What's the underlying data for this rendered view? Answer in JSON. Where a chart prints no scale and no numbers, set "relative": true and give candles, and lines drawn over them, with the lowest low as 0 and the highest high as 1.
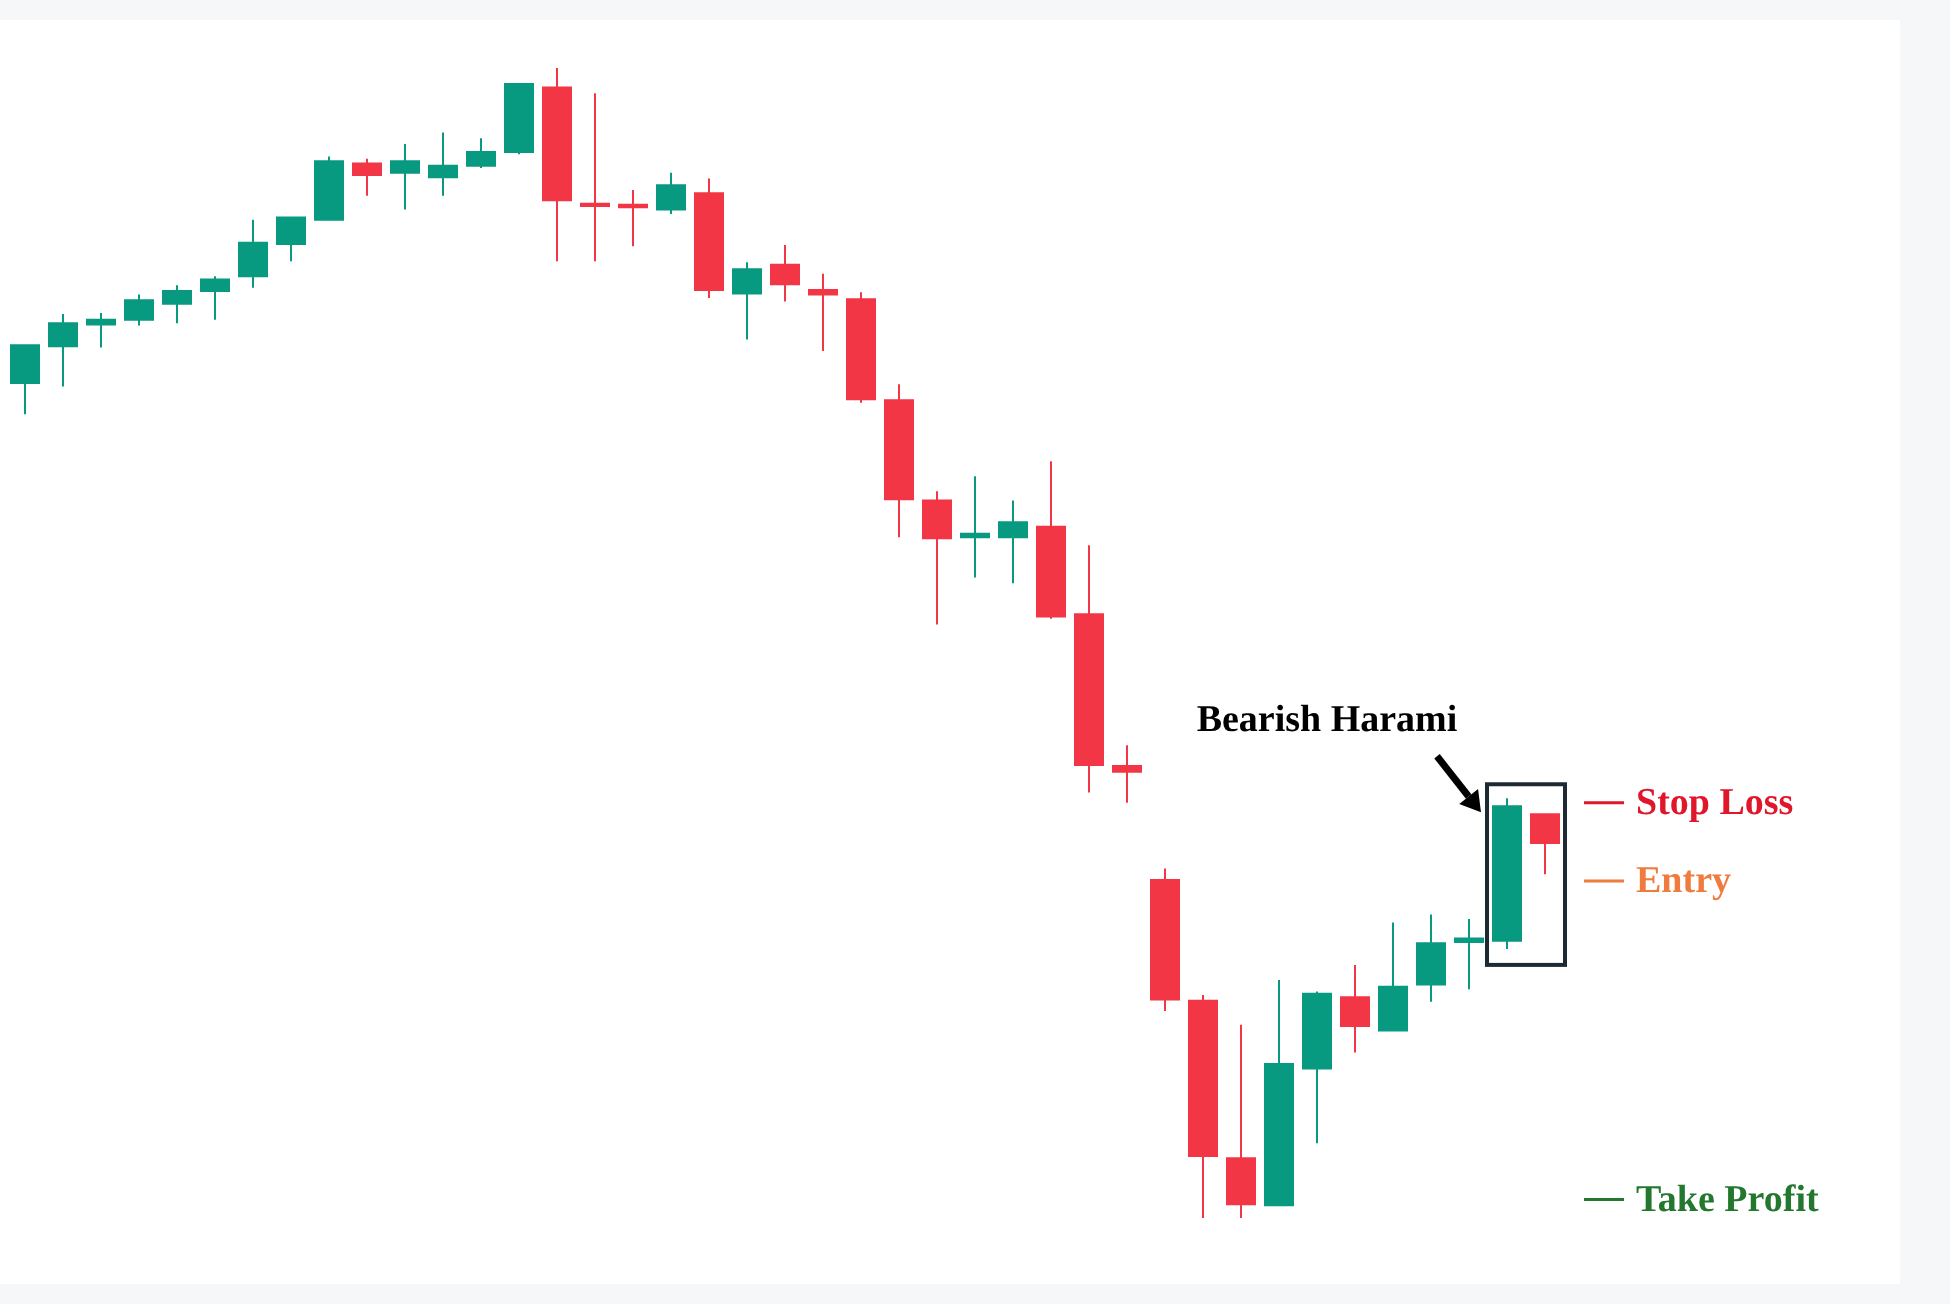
{
  "chart_data": {
    "type": "candlestick",
    "relative": true,
    "categories": [
      null,
      null,
      null,
      null,
      null,
      null,
      null,
      null,
      null,
      null,
      null,
      null,
      null,
      null,
      null,
      null,
      null,
      null,
      null,
      null,
      null,
      null,
      null,
      null,
      null,
      null,
      null,
      null,
      null,
      null,
      null,
      null,
      null,
      null,
      null,
      null,
      null,
      null,
      null,
      null,
      null
    ],
    "ohlc": [
      [
        0.726,
        0.759,
        0.699,
        0.759
      ],
      [
        0.758,
        0.786,
        0.723,
        0.778
      ],
      [
        0.777,
        0.787,
        0.757,
        0.781
      ],
      [
        0.781,
        0.803,
        0.776,
        0.798
      ],
      [
        0.795,
        0.811,
        0.778,
        0.806
      ],
      [
        0.806,
        0.819,
        0.781,
        0.816
      ],
      [
        0.819,
        0.868,
        0.809,
        0.848
      ],
      [
        0.847,
        0.87,
        0.832,
        0.87
      ],
      [
        0.868,
        0.923,
        0.868,
        0.919
      ],
      [
        0.917,
        0.921,
        0.889,
        0.907
      ],
      [
        0.909,
        0.934,
        0.877,
        0.919
      ],
      [
        0.905,
        0.944,
        0.889,
        0.915
      ],
      [
        0.915,
        0.939,
        0.913,
        0.927
      ],
      [
        0.927,
        0.986,
        0.925,
        0.986
      ],
      [
        0.983,
        1,
        0.832,
        0.885
      ],
      [
        0.882,
        0.978,
        0.832,
        0.88
      ],
      [
        0.881,
        0.894,
        0.845,
        0.879
      ],
      [
        0.877,
        0.909,
        0.873,
        0.898
      ],
      [
        0.891,
        0.904,
        0.8,
        0.807
      ],
      [
        0.804,
        0.831,
        0.764,
        0.825
      ],
      [
        0.829,
        0.846,
        0.797,
        0.812
      ],
      [
        0.807,
        0.821,
        0.754,
        0.803
      ],
      [
        0.799,
        0.805,
        0.709,
        0.712
      ],
      [
        0.711,
        0.725,
        0.592,
        0.625
      ],
      [
        0.624,
        0.632,
        0.516,
        0.591
      ],
      [
        0.592,
        0.645,
        0.557,
        0.595
      ],
      [
        0.592,
        0.624,
        0.552,
        0.605
      ],
      [
        0.601,
        0.658,
        0.521,
        0.523
      ],
      [
        0.525,
        0.585,
        0.37,
        0.394
      ],
      [
        0.393,
        0.411,
        0.361,
        0.388
      ],
      [
        0.294,
        0.304,
        0.18,
        0.19
      ],
      [
        0.189,
        0.194,
        0,
        0.054
      ],
      [
        0.052,
        0.168,
        0,
        0.012
      ],
      [
        0.011,
        0.207,
        0.011,
        0.134
      ],
      [
        0.13,
        0.197,
        0.065,
        0.195
      ],
      [
        0.192,
        0.22,
        0.144,
        0.167
      ],
      [
        0.163,
        0.257,
        0.163,
        0.201
      ],
      [
        0.203,
        0.264,
        0.188,
        0.239
      ],
      [
        0.24,
        0.26,
        0.199,
        0.243
      ],
      [
        0.241,
        0.365,
        0.234,
        0.358
      ],
      [
        0.351,
        0.351,
        0.299,
        0.326
      ]
    ],
    "colors": [
      "#089981",
      "#089981",
      "#089981",
      "#089981",
      "#089981",
      "#089981",
      "#089981",
      "#089981",
      "#089981",
      "#f23645",
      "#089981",
      "#089981",
      "#089981",
      "#089981",
      "#f23645",
      "#f23645",
      "#f23645",
      "#089981",
      "#f23645",
      "#089981",
      "#f23645",
      "#f23645",
      "#f23645",
      "#f23645",
      "#f23645",
      "#089981",
      "#089981",
      "#f23645",
      "#f23645",
      "#f23645",
      "#f23645",
      "#f23645",
      "#f23645",
      "#089981",
      "#089981",
      "#f23645",
      "#089981",
      "#089981",
      "#089981",
      "#089981",
      "#f23645"
    ],
    "annotations": [
      "Bearish Harami"
    ],
    "ref_lines": [
      {
        "axis": "y",
        "value": 0.361,
        "label": "Stop Loss",
        "color": "#e0162b"
      },
      {
        "axis": "y",
        "value": 0.293,
        "label": "Entry",
        "color": "#f07b3f"
      },
      {
        "axis": "y",
        "value": 0.016,
        "label": "Take Profit",
        "color": "#23772f"
      }
    ]
  }
}
